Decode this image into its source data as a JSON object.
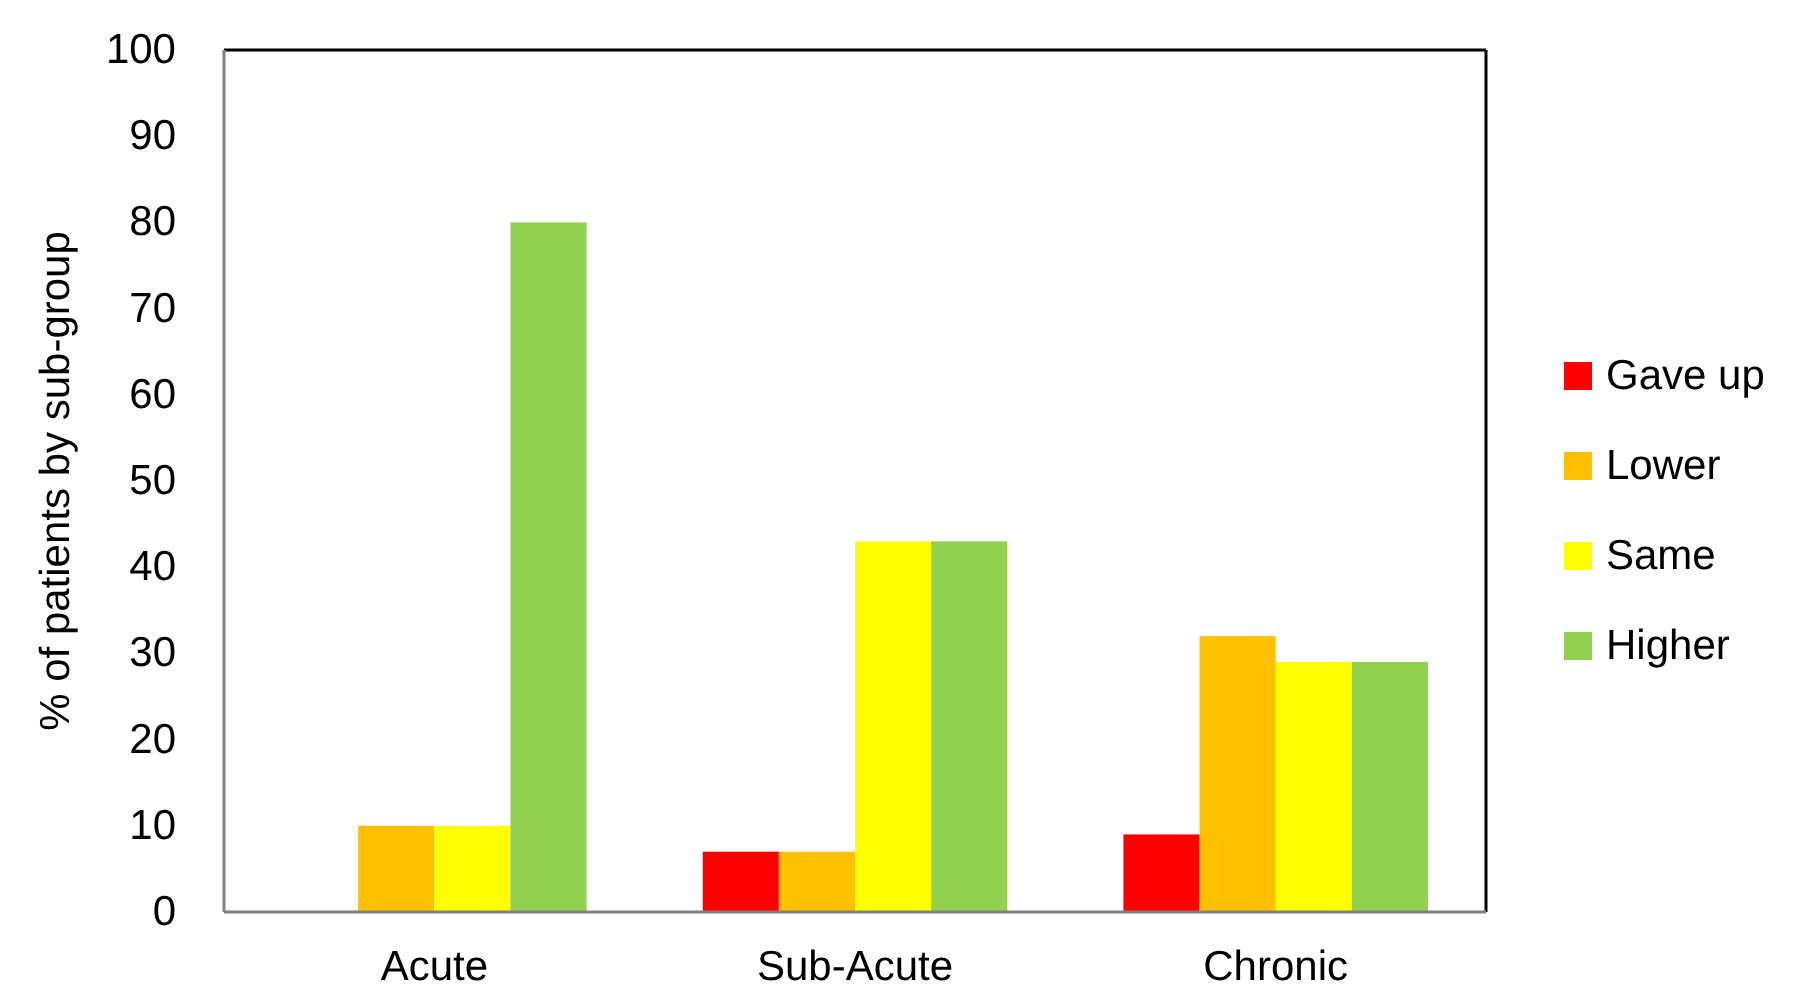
{
  "chart_data": {
    "type": "bar",
    "ylabel": "% of patients by sub-group",
    "categories": [
      "Acute",
      "Sub-Acute",
      "Chronic"
    ],
    "series": [
      {
        "name": "Gave up",
        "color": "#ff0000",
        "values": [
          0,
          7,
          9
        ]
      },
      {
        "name": "Lower",
        "color": "#ffc000",
        "values": [
          10,
          7,
          32
        ]
      },
      {
        "name": "Same",
        "color": "#ffff00",
        "values": [
          10,
          43,
          29
        ]
      },
      {
        "name": "Higher",
        "color": "#92d050",
        "values": [
          80,
          43,
          29
        ]
      }
    ],
    "ylim": [
      0,
      100
    ],
    "yticks": [
      0,
      10,
      20,
      30,
      40,
      50,
      60,
      70,
      80,
      90,
      100
    ],
    "grid": false,
    "legend": "right"
  }
}
